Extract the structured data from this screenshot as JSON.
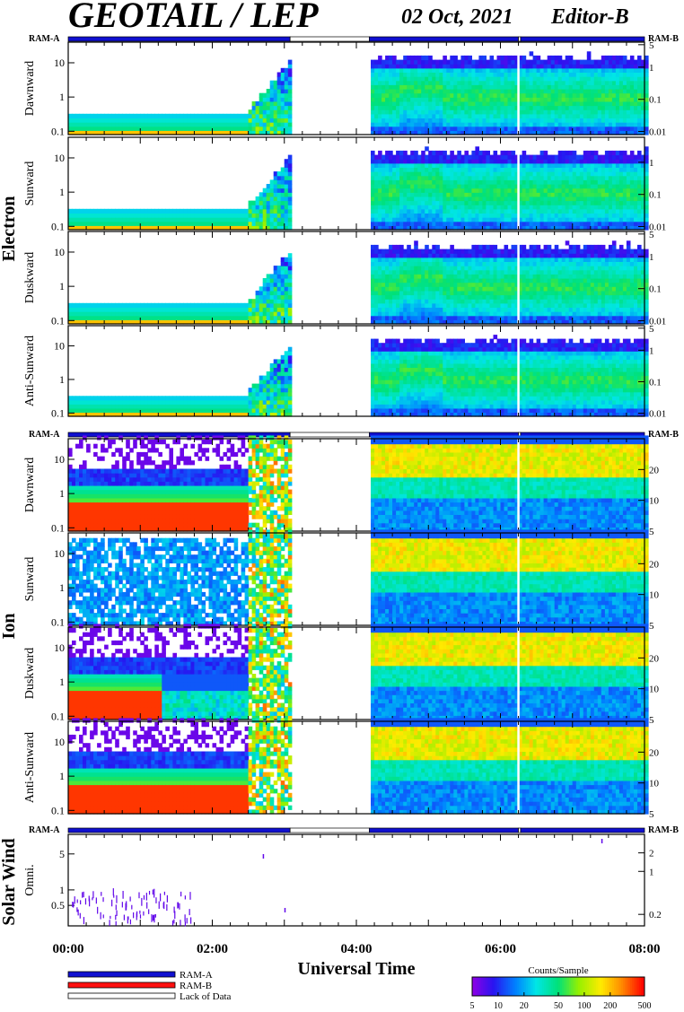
{
  "header": {
    "title": "GEOTAIL / LEP",
    "date": "02 Oct, 2021",
    "editor": "Editor-B"
  },
  "colors": {
    "ram_a": "#1010d0",
    "ram_b": "#ff1010",
    "lack": "#ffffff",
    "data_gap_line": "#ffffff"
  },
  "chart_data": {
    "type": "heatmap",
    "title": "GEOTAIL / LEP",
    "xlabel": "Universal Time",
    "x_ticks": [
      "00:00",
      "02:00",
      "04:00",
      "06:00",
      "08:00"
    ],
    "x_range_hours": [
      0,
      8
    ],
    "data_coverage_hours": [
      [
        0.0,
        3.08
      ],
      [
        4.18,
        8.0
      ]
    ],
    "gap_line_hour": 6.25,
    "groups": [
      {
        "name": "Electron",
        "ram_label_left": "RAM-A",
        "ram_label_right": "RAM-B",
        "ram_bar": [
          [
            "A",
            0.0,
            3.08
          ],
          [
            "L",
            3.08,
            4.18
          ],
          [
            "A",
            4.18,
            6.25
          ],
          [
            "L",
            6.25,
            6.28
          ],
          [
            "A",
            6.28,
            8.0
          ]
        ],
        "panels": [
          {
            "label": "Dawnward",
            "left_ticks": [
              "10",
              "1",
              "0.1"
            ],
            "left_values": [
              10,
              1,
              0.1
            ],
            "left_range": [
              0.08,
              40
            ],
            "right_ticks": [
              "5",
              "1",
              "0.1",
              "0.01"
            ],
            "right_values": [
              5,
              1,
              0.1,
              0.01
            ],
            "right_range": [
              0.008,
              6
            ]
          },
          {
            "label": "Sunward",
            "left_ticks": [
              "10",
              "1",
              "0.1"
            ],
            "left_values": [
              10,
              1,
              0.1
            ],
            "left_range": [
              0.08,
              40
            ],
            "right_ticks": [
              "1",
              "0.1",
              "0.01"
            ],
            "right_values": [
              1,
              0.1,
              0.01
            ],
            "right_range": [
              0.008,
              6
            ]
          },
          {
            "label": "Duskward",
            "left_ticks": [
              "10",
              "1",
              "0.1"
            ],
            "left_values": [
              10,
              1,
              0.1
            ],
            "left_range": [
              0.08,
              40
            ],
            "right_ticks": [
              "5",
              "1",
              "0.1",
              "0.01"
            ],
            "right_values": [
              5,
              1,
              0.1,
              0.01
            ],
            "right_range": [
              0.008,
              6
            ]
          },
          {
            "label": "Anti-Sunward",
            "left_ticks": [
              "10",
              "1",
              "0.1"
            ],
            "left_values": [
              10,
              1,
              0.1
            ],
            "left_range": [
              0.08,
              40
            ],
            "right_ticks": [
              "5",
              "1",
              "0.1",
              "0.01"
            ],
            "right_values": [
              5,
              1,
              0.1,
              0.01
            ],
            "right_range": [
              0.008,
              6
            ]
          }
        ]
      },
      {
        "name": "Ion",
        "ram_label_left": "RAM-A",
        "ram_label_right": "RAM-B",
        "ram_bar": [
          [
            "A",
            0.0,
            3.08
          ],
          [
            "L",
            3.08,
            4.18
          ],
          [
            "A",
            4.18,
            6.25
          ],
          [
            "L",
            6.25,
            6.28
          ],
          [
            "A",
            6.28,
            8.0
          ]
        ],
        "panels": [
          {
            "label": "Dawnward",
            "left_ticks": [
              "10",
              "1",
              "0.1"
            ],
            "left_values": [
              10,
              1,
              0.1
            ],
            "left_range": [
              0.08,
              40
            ],
            "right_ticks": [
              "20",
              "10",
              "5"
            ],
            "right_values": [
              20,
              10,
              5
            ],
            "right_range": [
              5,
              40
            ]
          },
          {
            "label": "Sunward",
            "left_ticks": [
              "10",
              "1",
              "0.1"
            ],
            "left_values": [
              10,
              1,
              0.1
            ],
            "left_range": [
              0.08,
              40
            ],
            "right_ticks": [
              "20",
              "10",
              "5"
            ],
            "right_values": [
              20,
              10,
              5
            ],
            "right_range": [
              5,
              40
            ]
          },
          {
            "label": "Duskward",
            "left_ticks": [
              "10",
              "1",
              "0.1"
            ],
            "left_values": [
              10,
              1,
              0.1
            ],
            "left_range": [
              0.08,
              40
            ],
            "right_ticks": [
              "20",
              "10",
              "5"
            ],
            "right_values": [
              20,
              10,
              5
            ],
            "right_range": [
              5,
              40
            ]
          },
          {
            "label": "Anti-Sunward",
            "left_ticks": [
              "10",
              "1",
              "0.1"
            ],
            "left_values": [
              10,
              1,
              0.1
            ],
            "left_range": [
              0.08,
              40
            ],
            "right_ticks": [
              "20",
              "10",
              "5"
            ],
            "right_values": [
              20,
              10,
              5
            ],
            "right_range": [
              5,
              40
            ]
          }
        ]
      },
      {
        "name": "Solar Wind",
        "ram_label_left": "RAM-A",
        "ram_label_right": "RAM-B",
        "ram_bar": [
          [
            "A",
            0.0,
            3.08
          ],
          [
            "L",
            3.08,
            4.18
          ],
          [
            "A",
            4.18,
            6.25
          ],
          [
            "L",
            6.25,
            6.28
          ],
          [
            "A",
            6.28,
            8.0
          ]
        ],
        "panels": [
          {
            "label": "Omni.",
            "left_ticks": [
              "5",
              "1",
              "0.5"
            ],
            "left_values": [
              5,
              1,
              0.5
            ],
            "left_range": [
              0.2,
              12
            ],
            "right_ticks": [
              "2",
              "1",
              "0.2"
            ],
            "right_values": [
              2,
              1,
              0.2
            ],
            "right_range": [
              0.13,
              4
            ]
          }
        ]
      }
    ],
    "legend": [
      {
        "label": "RAM-A",
        "color": "#1010d0"
      },
      {
        "label": "RAM-B",
        "color": "#ff1010"
      },
      {
        "label": "Lack of Data",
        "color": "#ffffff"
      }
    ],
    "colorbar": {
      "title": "Counts/Sample",
      "ticks": [
        "5",
        "10",
        "20",
        "50",
        "100",
        "200",
        "500"
      ],
      "values": [
        5,
        10,
        20,
        50,
        100,
        200,
        500
      ],
      "range": [
        5,
        500
      ]
    }
  }
}
